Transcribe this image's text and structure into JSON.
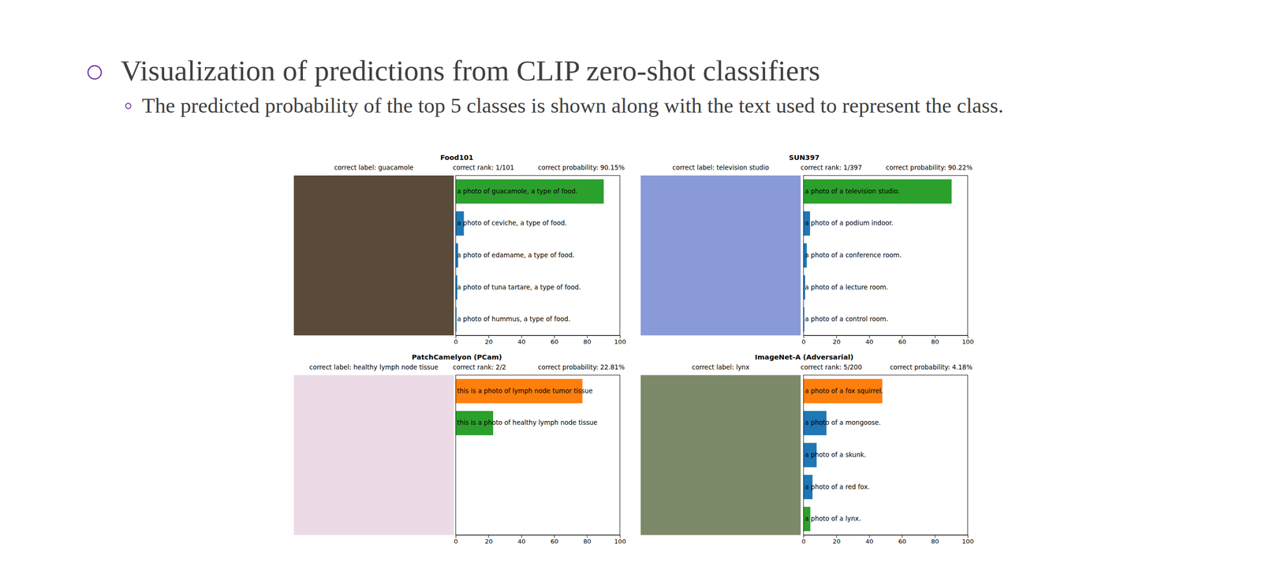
{
  "slide": {
    "title": "Visualization of predictions from CLIP zero-shot classifiers",
    "subtitle": "The predicted probability of the top 5 classes is shown along with the text used to represent the class."
  },
  "chart_data": [
    {
      "type": "bar",
      "orientation": "horizontal",
      "title": "Food101",
      "annotations": [
        "correct label: guacamole",
        "correct rank: 1/101",
        "correct probability: 90.15%"
      ],
      "categories": [
        "a photo of guacamole, a type of food.",
        "a photo of ceviche, a type of food.",
        "a photo of edamame, a type of food.",
        "a photo of tuna tartare, a type of food.",
        "a photo of hummus, a type of food."
      ],
      "values": [
        90.15,
        5,
        1.5,
        1,
        0.5
      ],
      "colors": [
        "#2ca02c",
        "#1f77b4",
        "#1f77b4",
        "#1f77b4",
        "#1f77b4"
      ],
      "xlim": [
        0,
        100
      ],
      "xticks": [
        0,
        20,
        40,
        60,
        80,
        100
      ],
      "tick_labels": "x"
    },
    {
      "type": "bar",
      "orientation": "horizontal",
      "title": "SUN397",
      "annotations": [
        "correct label: television studio",
        "correct rank: 1/397",
        "correct probability: 90.22%"
      ],
      "categories": [
        "a photo of a television studio.",
        "a photo of a podium indoor.",
        "a photo of a conference room.",
        "a photo of a lecture room.",
        "a photo of a control room."
      ],
      "values": [
        90.22,
        4,
        2,
        1,
        0.5
      ],
      "colors": [
        "#2ca02c",
        "#1f77b4",
        "#1f77b4",
        "#1f77b4",
        "#1f77b4"
      ],
      "xlim": [
        0,
        100
      ],
      "xticks": [
        0,
        20,
        40,
        60,
        80,
        100
      ],
      "tick_labels": "x"
    },
    {
      "type": "bar",
      "orientation": "horizontal",
      "title": "PatchCamelyon (PCam)",
      "annotations": [
        "correct label: healthy lymph node tissue",
        "correct rank: 2/2",
        "correct probability: 22.81%"
      ],
      "categories": [
        "this is a photo of lymph node tumor tissue",
        "this is a photo of healthy lymph node tissue"
      ],
      "values": [
        77.19,
        22.81
      ],
      "colors": [
        "#ff7f0e",
        "#2ca02c"
      ],
      "xlim": [
        0,
        100
      ],
      "xticks": [
        0,
        20,
        40,
        60,
        80,
        100
      ],
      "tick_labels": "x"
    },
    {
      "type": "bar",
      "orientation": "horizontal",
      "title": "ImageNet-A (Adversarial)",
      "annotations": [
        "correct label: lynx",
        "correct rank: 5/200",
        "correct probability: 4.18%"
      ],
      "categories": [
        "a photo of a fox squirrel.",
        "a photo of a mongoose.",
        "a photo of a skunk.",
        "a photo of a red fox.",
        "a photo of a lynx."
      ],
      "values": [
        48,
        14,
        8,
        5.5,
        4.18
      ],
      "colors": [
        "#ff7f0e",
        "#1f77b4",
        "#1f77b4",
        "#1f77b4",
        "#2ca02c"
      ],
      "xlim": [
        0,
        100
      ],
      "xticks": [
        0,
        20,
        40,
        60,
        80,
        100
      ],
      "tick_labels": "x"
    }
  ]
}
